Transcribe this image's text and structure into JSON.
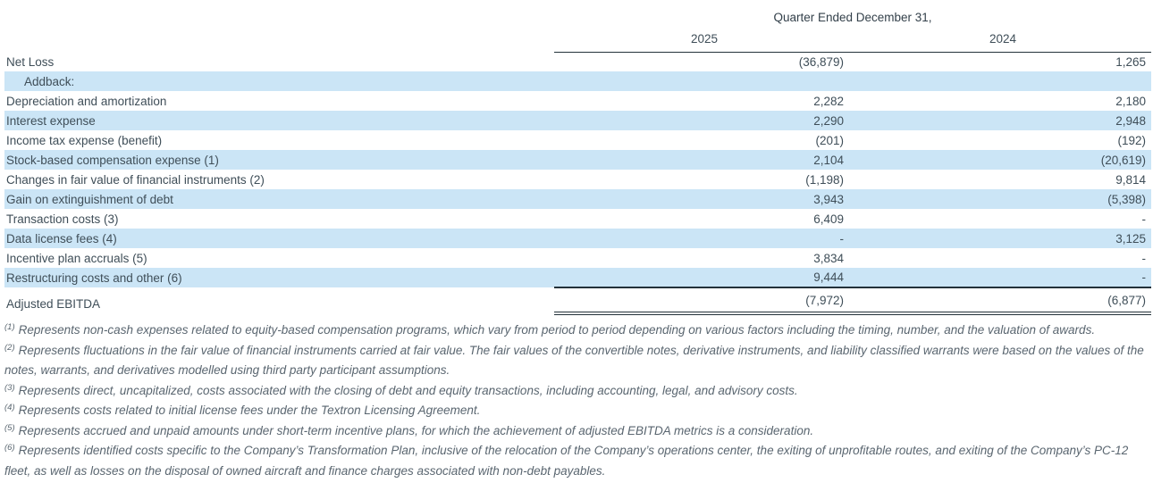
{
  "table": {
    "header": {
      "title": "Quarter Ended December 31,",
      "col_2025": "2025",
      "col_2024": "2024"
    },
    "rows": [
      {
        "label": "Net Loss",
        "v2025": "(36,879)",
        "v2024": "1,265"
      },
      {
        "label": "Addback:",
        "v2025": "",
        "v2024": ""
      },
      {
        "label": "Depreciation and amortization",
        "v2025": "2,282",
        "v2024": "2,180"
      },
      {
        "label": "Interest expense",
        "v2025": "2,290",
        "v2024": "2,948"
      },
      {
        "label": "Income tax expense (benefit)",
        "v2025": "(201)",
        "v2024": "(192)"
      },
      {
        "label": "Stock-based compensation expense (1)",
        "v2025": "2,104",
        "v2024": "(20,619)"
      },
      {
        "label": "Changes in fair value of financial instruments (2)",
        "v2025": "(1,198)",
        "v2024": "9,814"
      },
      {
        "label": "Gain on extinguishment of debt",
        "v2025": "3,943",
        "v2024": "(5,398)"
      },
      {
        "label": "Transaction costs (3)",
        "v2025": "6,409",
        "v2024": "-"
      },
      {
        "label": "Data license fees (4)",
        "v2025": "-",
        "v2024": "3,125"
      },
      {
        "label": "Incentive plan accruals (5)",
        "v2025": "3,834",
        "v2024": "-"
      },
      {
        "label": "Restructuring costs and other (6)",
        "v2025": "9,444",
        "v2024": "-"
      }
    ],
    "total_row": {
      "label": "Adjusted EBITDA",
      "v2025": "(7,972)",
      "v2024": "(6,877)"
    }
  },
  "footnotes": [
    {
      "marker": "(1)",
      "text": "Represents non-cash expenses related to equity-based compensation programs, which vary from period to period depending on various factors including the timing, number, and the valuation of awards."
    },
    {
      "marker": "(2)",
      "text": "Represents fluctuations in the fair value of financial instruments carried at fair value. The fair values of the convertible notes, derivative instruments, and liability classified warrants were based on the values of the notes, warrants, and derivatives modelled using third party participant assumptions."
    },
    {
      "marker": "(3)",
      "text": "Represents direct, uncapitalized, costs associated with the closing of debt and equity transactions, including accounting, legal, and advisory costs."
    },
    {
      "marker": "(4)",
      "text": "Represents costs related to initial license fees under the Textron Licensing Agreement."
    },
    {
      "marker": "(5)",
      "text": "Represents accrued and unpaid amounts under short-term incentive plans, for which the achievement of adjusted EBITDA metrics is a consideration."
    },
    {
      "marker": "(6)",
      "text": "Represents identified costs specific to the Company’s Transformation Plan, inclusive of the relocation of the Company’s operations center, the exiting of unprofitable routes, and exiting of the Company’s PC-12 fleet, as well as losses on the disposal of owned aircraft and finance charges associated with non-debt payables."
    }
  ],
  "colors": {
    "highlight": "#cbe5f6",
    "text": "#3f4e58",
    "rule": "#23313a",
    "footnote_text": "#5a6670"
  }
}
